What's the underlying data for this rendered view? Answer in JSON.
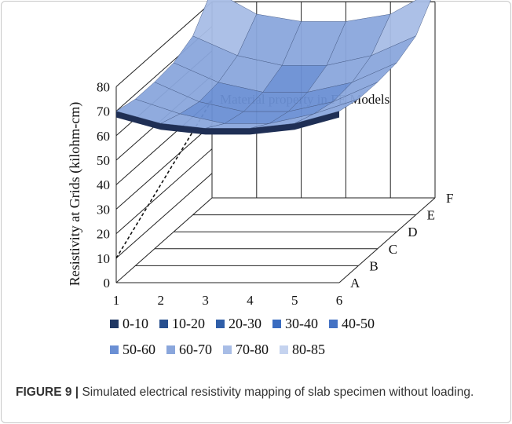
{
  "chart_data": {
    "type": "surface",
    "title": "",
    "zlabel": "Resistivity at Grids (kilohm-cm)",
    "x_ticks": [
      "1",
      "2",
      "3",
      "4",
      "5",
      "6"
    ],
    "y_ticks": [
      "A",
      "B",
      "C",
      "D",
      "E",
      "F"
    ],
    "z_ticks": [
      "0",
      "10",
      "20",
      "30",
      "40",
      "50",
      "60",
      "70",
      "80"
    ],
    "zlim": [
      0,
      80
    ],
    "x": [
      1,
      2,
      3,
      4,
      5,
      6
    ],
    "y": [
      "A",
      "B",
      "C",
      "D",
      "E",
      "F"
    ],
    "values": [
      [
        70,
        65,
        63,
        63,
        65,
        70
      ],
      [
        68,
        62,
        58,
        58,
        62,
        68
      ],
      [
        68,
        60,
        56,
        56,
        60,
        68
      ],
      [
        69,
        61,
        57,
        57,
        61,
        69
      ],
      [
        73,
        65,
        61,
        61,
        65,
        73
      ],
      [
        85,
        75,
        72,
        72,
        75,
        85
      ]
    ],
    "reference_line": {
      "label": "Material property in FE  Models",
      "value": 10
    },
    "legend": [
      {
        "label": "0-10",
        "color": "#1f3763"
      },
      {
        "label": "10-20",
        "color": "#274f8f"
      },
      {
        "label": "20-30",
        "color": "#2f5ea8"
      },
      {
        "label": "30-40",
        "color": "#3a6cc0"
      },
      {
        "label": "40-50",
        "color": "#4472c4"
      },
      {
        "label": "50-60",
        "color": "#6a8fd4"
      },
      {
        "label": "60-70",
        "color": "#8aa6dc"
      },
      {
        "label": "70-80",
        "color": "#a8bde6"
      },
      {
        "label": "80-85",
        "color": "#c5d3ef"
      }
    ]
  },
  "caption": {
    "label": "FIGURE 9 |",
    "text": " Simulated electrical resistivity mapping of slab specimen without loading."
  }
}
